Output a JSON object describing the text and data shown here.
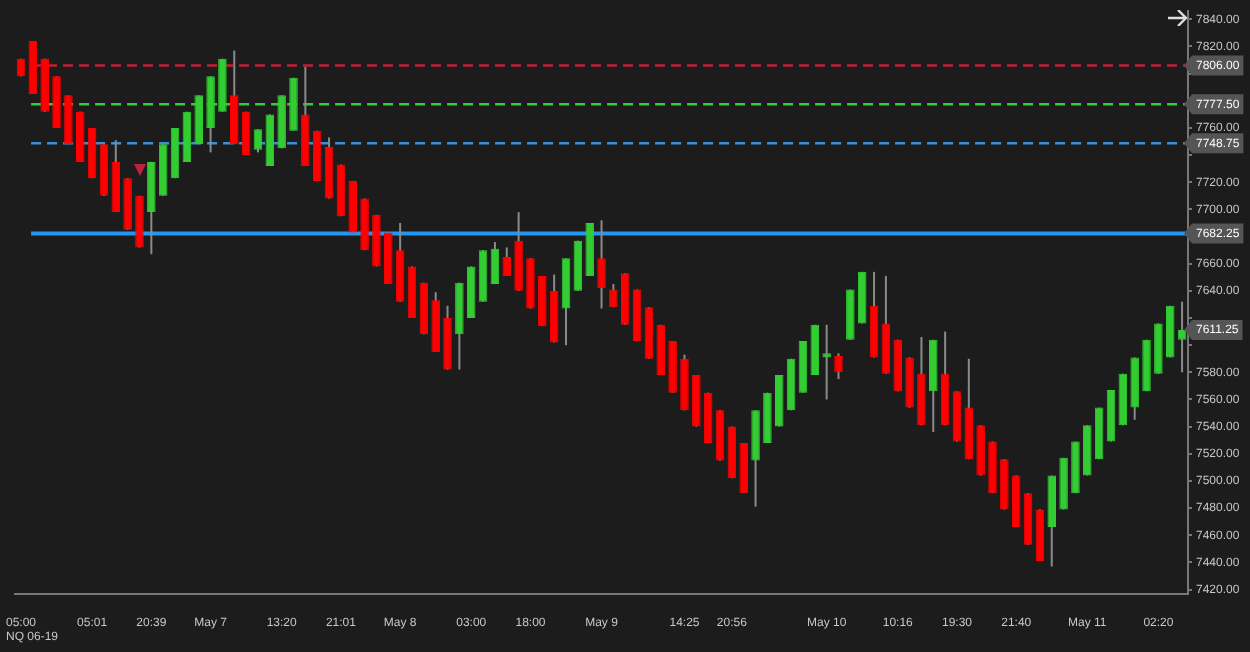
{
  "chart_data": {
    "type": "candlestick",
    "categories": [
      "05:00",
      null,
      null,
      null,
      null,
      null,
      "05:01",
      null,
      null,
      null,
      null,
      "20:39",
      null,
      null,
      null,
      null,
      "May 7",
      null,
      null,
      null,
      null,
      null,
      "13:20",
      null,
      null,
      null,
      null,
      "21:01",
      null,
      null,
      null,
      null,
      "May 8",
      null,
      null,
      null,
      null,
      null,
      "03:00",
      null,
      null,
      null,
      null,
      "18:00",
      null,
      null,
      null,
      null,
      null,
      "May 9",
      null,
      null,
      null,
      null,
      null,
      null,
      "14:25",
      null,
      null,
      null,
      "20:56",
      null,
      null,
      null,
      null,
      null,
      null,
      null,
      "May 10",
      null,
      null,
      null,
      null,
      null,
      "10:16",
      null,
      null,
      null,
      null,
      "19:30",
      null,
      null,
      null,
      null,
      "21:40",
      null,
      null,
      null,
      null,
      null,
      "May 11",
      null,
      null,
      null,
      null,
      null,
      "02:20",
      null,
      null
    ],
    "ohlc": [
      [
        7811,
        7811,
        7798,
        7798
      ],
      [
        7824,
        7824,
        7785,
        7785
      ],
      [
        7811,
        7811,
        7772,
        7772
      ],
      [
        7798,
        7798,
        7760,
        7760
      ],
      [
        7784,
        7784,
        7748,
        7748
      ],
      [
        7772,
        7772,
        7735,
        7735
      ],
      [
        7760,
        7760,
        7723,
        7723
      ],
      [
        7748,
        7748,
        7710,
        7710
      ],
      [
        7735,
        7751,
        7698,
        7698
      ],
      [
        7723,
        7723,
        7685,
        7685
      ],
      [
        7710,
        7710,
        7672,
        7672
      ],
      [
        7698,
        7735,
        7667,
        7735
      ],
      [
        7710,
        7748,
        7710,
        7748
      ],
      [
        7723,
        7760,
        7723,
        7760
      ],
      [
        7735,
        7772,
        7735,
        7772
      ],
      [
        7748,
        7784,
        7748,
        7784
      ],
      [
        7760,
        7798,
        7742,
        7798
      ],
      [
        7772,
        7811,
        7772,
        7811
      ],
      [
        7784,
        7817,
        7748,
        7748
      ],
      [
        7772,
        7772,
        7740,
        7740
      ],
      [
        7744,
        7759,
        7742,
        7759
      ],
      [
        7732,
        7770,
        7732,
        7770
      ],
      [
        7745,
        7784,
        7745,
        7784
      ],
      [
        7758,
        7797,
        7758,
        7797
      ],
      [
        7770,
        7805,
        7732,
        7732
      ],
      [
        7758,
        7758,
        7721,
        7721
      ],
      [
        7746,
        7753,
        7708,
        7708
      ],
      [
        7733,
        7733,
        7695,
        7695
      ],
      [
        7721,
        7721,
        7683,
        7683
      ],
      [
        7708,
        7708,
        7670,
        7670
      ],
      [
        7696,
        7696,
        7658,
        7658
      ],
      [
        7683,
        7683,
        7645,
        7645
      ],
      [
        7670,
        7690,
        7632,
        7632
      ],
      [
        7658,
        7658,
        7620,
        7620
      ],
      [
        7646,
        7646,
        7608,
        7608
      ],
      [
        7633,
        7639,
        7595,
        7595
      ],
      [
        7620,
        7629,
        7582,
        7582
      ],
      [
        7608,
        7646,
        7582,
        7646
      ],
      [
        7620,
        7658,
        7620,
        7658
      ],
      [
        7632,
        7670,
        7632,
        7670
      ],
      [
        7645,
        7676,
        7645,
        7671
      ],
      [
        7665,
        7672,
        7651,
        7651
      ],
      [
        7677,
        7698,
        7640,
        7640
      ],
      [
        7664,
        7664,
        7627,
        7627
      ],
      [
        7651,
        7651,
        7614,
        7614
      ],
      [
        7640,
        7652,
        7602,
        7602
      ],
      [
        7627,
        7664,
        7600,
        7664
      ],
      [
        7640,
        7677,
        7640,
        7677
      ],
      [
        7651,
        7690,
        7651,
        7690
      ],
      [
        7664,
        7692,
        7627,
        7642
      ],
      [
        7641,
        7645,
        7628,
        7628
      ],
      [
        7653,
        7653,
        7615,
        7615
      ],
      [
        7641,
        7641,
        7603,
        7603
      ],
      [
        7628,
        7628,
        7590,
        7590
      ],
      [
        7615,
        7615,
        7578,
        7578
      ],
      [
        7603,
        7603,
        7565,
        7565
      ],
      [
        7590,
        7593,
        7552,
        7552
      ],
      [
        7578,
        7578,
        7540,
        7540
      ],
      [
        7565,
        7565,
        7528,
        7528
      ],
      [
        7552,
        7552,
        7515,
        7515
      ],
      [
        7540,
        7540,
        7502,
        7502
      ],
      [
        7528,
        7528,
        7491,
        7491
      ],
      [
        7515,
        7552,
        7481,
        7552
      ],
      [
        7528,
        7565,
        7528,
        7565
      ],
      [
        7540,
        7578,
        7540,
        7578
      ],
      [
        7552,
        7590,
        7552,
        7590
      ],
      [
        7565,
        7603,
        7565,
        7603
      ],
      [
        7578,
        7615,
        7578,
        7615
      ],
      [
        7591,
        7615,
        7560,
        7594
      ],
      [
        7592,
        7594,
        7575,
        7580
      ],
      [
        7604,
        7641,
        7604,
        7641
      ],
      [
        7616,
        7654,
        7616,
        7654
      ],
      [
        7629,
        7654,
        7591,
        7591
      ],
      [
        7616,
        7651,
        7579,
        7579
      ],
      [
        7604,
        7604,
        7566,
        7566
      ],
      [
        7591,
        7591,
        7554,
        7554
      ],
      [
        7579,
        7606,
        7541,
        7541
      ],
      [
        7566,
        7604,
        7536,
        7604
      ],
      [
        7579,
        7610,
        7541,
        7541
      ],
      [
        7566,
        7566,
        7529,
        7529
      ],
      [
        7554,
        7590,
        7516,
        7516
      ],
      [
        7541,
        7541,
        7504,
        7504
      ],
      [
        7529,
        7529,
        7491,
        7491
      ],
      [
        7516,
        7516,
        7479,
        7479
      ],
      [
        7504,
        7504,
        7466,
        7466
      ],
      [
        7491,
        7491,
        7453,
        7453
      ],
      [
        7479,
        7479,
        7441,
        7441
      ],
      [
        7466,
        7504,
        7437,
        7504
      ],
      [
        7479,
        7517,
        7479,
        7517
      ],
      [
        7491,
        7529,
        7491,
        7529
      ],
      [
        7504,
        7541,
        7504,
        7541
      ],
      [
        7516,
        7554,
        7516,
        7554
      ],
      [
        7529,
        7567,
        7529,
        7567
      ],
      [
        7541,
        7579,
        7541,
        7579
      ],
      [
        7554,
        7591,
        7545,
        7591
      ],
      [
        7566,
        7604,
        7566,
        7604
      ],
      [
        7579,
        7616,
        7579,
        7616
      ],
      [
        7591,
        7629,
        7591,
        7629
      ],
      [
        7604,
        7632,
        7580,
        7611.25
      ]
    ],
    "colors": [
      "#ff0000",
      "#ff0000",
      "#ff0000",
      "#ff0000",
      "#ff0000",
      "#ff0000",
      "#ff0000",
      "#ff0000",
      "#ff0000",
      "#ff0000",
      "#ff0000",
      "#32cd32",
      "#32cd32",
      "#32cd32",
      "#32cd32",
      "#32cd32",
      "#32cd32",
      "#32cd32",
      "#ff0000",
      "#ff0000",
      "#32cd32",
      "#32cd32",
      "#32cd32",
      "#32cd32",
      "#ff0000",
      "#ff0000",
      "#ff0000",
      "#ff0000",
      "#ff0000",
      "#ff0000",
      "#ff0000",
      "#ff0000",
      "#ff0000",
      "#ff0000",
      "#ff0000",
      "#ff0000",
      "#ff0000",
      "#32cd32",
      "#32cd32",
      "#32cd32",
      "#32cd32",
      "#ff0000",
      "#ff0000",
      "#ff0000",
      "#ff0000",
      "#ff0000",
      "#32cd32",
      "#32cd32",
      "#32cd32",
      "#ff0000",
      "#ff0000",
      "#ff0000",
      "#ff0000",
      "#ff0000",
      "#ff0000",
      "#ff0000",
      "#ff0000",
      "#ff0000",
      "#ff0000",
      "#ff0000",
      "#ff0000",
      "#ff0000",
      "#32cd32",
      "#32cd32",
      "#32cd32",
      "#32cd32",
      "#32cd32",
      "#32cd32",
      "#32cd32",
      "#ff0000",
      "#32cd32",
      "#32cd32",
      "#ff0000",
      "#ff0000",
      "#ff0000",
      "#ff0000",
      "#ff0000",
      "#32cd32",
      "#ff0000",
      "#ff0000",
      "#ff0000",
      "#ff0000",
      "#ff0000",
      "#ff0000",
      "#ff0000",
      "#ff0000",
      "#ff0000",
      "#32cd32",
      "#32cd32",
      "#32cd32",
      "#32cd32",
      "#32cd32",
      "#32cd32",
      "#32cd32",
      "#32cd32",
      "#32cd32",
      "#32cd32",
      "#32cd32",
      "#32cd32"
    ],
    "ylim": [
      7417,
      7846
    ],
    "yticks": [
      {
        "value": 7420,
        "label": "7420.00"
      },
      {
        "value": 7440,
        "label": "7440.00"
      },
      {
        "value": 7460,
        "label": "7460.00"
      },
      {
        "value": 7480,
        "label": "7480.00"
      },
      {
        "value": 7500,
        "label": "7500.00"
      },
      {
        "value": 7520,
        "label": "7520.00"
      },
      {
        "value": 7540,
        "label": "7540.00"
      },
      {
        "value": 7560,
        "label": "7560.00"
      },
      {
        "value": 7580,
        "label": "7580.00"
      },
      {
        "value": 7600,
        "label": null
      },
      {
        "value": 7620,
        "label": null
      },
      {
        "value": 7640,
        "label": "7640.00"
      },
      {
        "value": 7660,
        "label": "7660.00"
      },
      {
        "value": 7680,
        "label": null
      },
      {
        "value": 7700,
        "label": "7700.00"
      },
      {
        "value": 7720,
        "label": "7720.00"
      },
      {
        "value": 7740,
        "label": null
      },
      {
        "value": 7760,
        "label": "7760.00"
      },
      {
        "value": 7780,
        "label": null
      },
      {
        "value": 7800,
        "label": null
      },
      {
        "value": 7820,
        "label": "7820.00"
      },
      {
        "value": 7840,
        "label": "7840.00"
      }
    ],
    "ref_lines": [
      {
        "axis": "y",
        "value": 7806,
        "label": "7806.00",
        "color": "#c0213a",
        "line_style": "dashed"
      },
      {
        "axis": "y",
        "value": 7777.5,
        "label": "7777.50",
        "color": "#32cd32",
        "line_style": "dashed"
      },
      {
        "axis": "y",
        "value": 7748.75,
        "label": "7748.75",
        "color": "#3a8fd8",
        "line_style": "dashed"
      },
      {
        "axis": "y",
        "value": 7682.25,
        "label": "7682.25",
        "color": "#2196f3",
        "line_style": "solid"
      }
    ],
    "annotations": [
      "NQ 06-19",
      "7611.25"
    ]
  }
}
